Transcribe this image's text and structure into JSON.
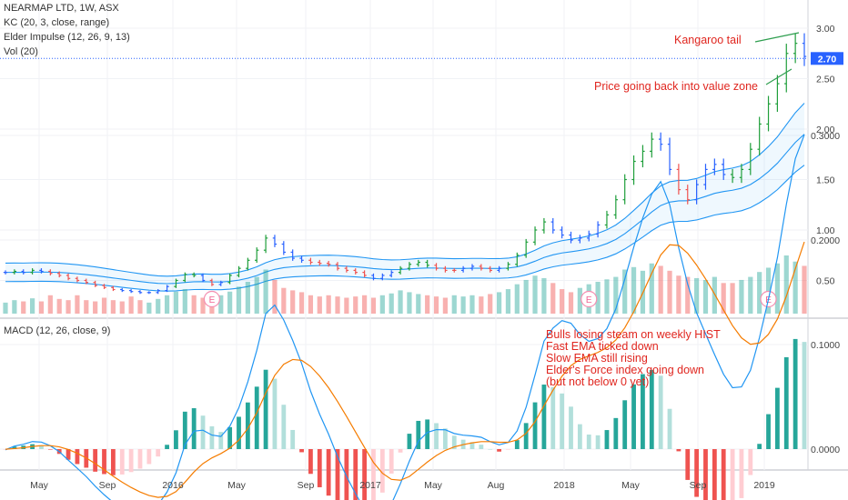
{
  "legend": {
    "symbol": "NEARMAP LTD, 1W, ASX",
    "kc": "KC (20, 3, close, range)",
    "impulse": "Elder Impulse (12, 26, 9, 13)",
    "vol": "Vol (20)",
    "macd": "MACD (12, 26, close, 9)"
  },
  "annotations": {
    "kangaroo": "Kangaroo tail",
    "value_zone": "Price going back into value zone",
    "bulls": [
      "Bulls losing steam on weekly HIST",
      "Fast EMA ticked down",
      "Slow EMA still rising",
      "Elder's Force index going down",
      "(but not below 0 yet)"
    ]
  },
  "last_price_label": "2.70",
  "earnings_marker": "E",
  "colors": {
    "up": "#26a69a",
    "down": "#ef5350",
    "neutral": "#2962ff",
    "channel": "#2196f3",
    "signal": "#f57c00",
    "annotation": "#e0261f"
  },
  "chart_data": [
    {
      "type": "line",
      "title": "NEARMAP LTD, 1W, ASX",
      "series": [
        {
          "name": "NEARMAP LTD",
          "values": [
            0.58,
            0.59,
            0.58,
            0.6,
            0.59,
            0.57,
            0.55,
            0.52,
            0.5,
            0.48,
            0.45,
            0.43,
            0.41,
            0.4,
            0.39,
            0.38,
            0.38,
            0.4,
            0.44,
            0.5,
            0.56,
            0.55,
            0.5,
            0.46,
            0.48,
            0.55,
            0.62,
            0.7,
            0.8,
            0.92,
            0.86,
            0.78,
            0.72,
            0.7,
            0.68,
            0.67,
            0.66,
            0.62,
            0.6,
            0.58,
            0.55,
            0.52,
            0.55,
            0.58,
            0.62,
            0.66,
            0.68,
            0.65,
            0.62,
            0.6,
            0.6,
            0.62,
            0.64,
            0.62,
            0.6,
            0.62,
            0.66,
            0.75,
            0.88,
            1.0,
            1.08,
            1.0,
            0.95,
            0.9,
            0.92,
            0.96,
            1.05,
            1.15,
            1.3,
            1.5,
            1.68,
            1.78,
            1.9,
            1.85,
            1.6,
            1.4,
            1.3,
            1.45,
            1.6,
            1.65,
            1.55,
            1.52,
            1.6,
            1.8,
            2.05,
            2.25,
            2.45,
            2.75,
            2.85,
            2.72
          ]
        }
      ],
      "x_ticks": [
        "May",
        "Sep",
        "2016",
        "May",
        "Sep",
        "2017",
        "May",
        "Aug",
        "2018",
        "May",
        "Sep",
        "2019"
      ],
      "y_ticks": [
        "0.50",
        "1.00",
        "1.50",
        "2.00",
        "2.50",
        "3.00"
      ],
      "ylim": [
        0.3,
        3.1
      ],
      "last_value": 2.7
    },
    {
      "type": "bar",
      "title": "Vol (20)",
      "values": [
        0.18,
        0.22,
        0.2,
        0.25,
        0.2,
        0.3,
        0.24,
        0.22,
        0.3,
        0.22,
        0.2,
        0.26,
        0.22,
        0.2,
        0.28,
        0.22,
        0.18,
        0.24,
        0.3,
        0.36,
        0.4,
        0.3,
        0.26,
        0.25,
        0.3,
        0.36,
        0.44,
        0.52,
        0.6,
        0.72,
        0.55,
        0.42,
        0.38,
        0.35,
        0.3,
        0.28,
        0.3,
        0.28,
        0.26,
        0.28,
        0.3,
        0.26,
        0.3,
        0.33,
        0.38,
        0.35,
        0.32,
        0.3,
        0.28,
        0.26,
        0.3,
        0.28,
        0.3,
        0.28,
        0.32,
        0.35,
        0.4,
        0.48,
        0.55,
        0.62,
        0.58,
        0.5,
        0.4,
        0.35,
        0.42,
        0.48,
        0.52,
        0.56,
        0.6,
        0.72,
        0.76,
        0.7,
        0.82,
        0.78,
        0.7,
        0.62,
        0.6,
        0.58,
        0.55,
        0.6,
        0.5,
        0.5,
        0.55,
        0.6,
        0.68,
        0.75,
        0.82,
        0.95,
        0.85,
        0.78
      ]
    },
    {
      "type": "line",
      "title": "MACD (12, 26, close, 9)",
      "series": [
        {
          "name": "MACD",
          "values": [
            -0.0007,
            0.0029,
            0.0046,
            0.0072,
            0.0067,
            0.0032,
            -0.0025,
            -0.0106,
            -0.0183,
            -0.0263,
            -0.0355,
            -0.0437,
            -0.051,
            -0.0559,
            -0.0587,
            -0.0597,
            -0.0587,
            -0.0533,
            -0.0411,
            -0.0227,
            0.0041,
            0.0172,
            0.0181,
            0.0134,
            0.0121,
            0.0219,
            0.0395,
            0.0643,
            0.0944,
            0.1296,
            0.1378,
            0.1235,
            0.104,
            0.0819,
            0.0553,
            0.0334,
            0.0142,
            -0.0073,
            -0.0262,
            -0.0426,
            -0.0577,
            -0.0704,
            -0.0647,
            -0.0524,
            -0.0331,
            -0.0115,
            0.0076,
            0.0159,
            0.0186,
            0.0185,
            0.0149,
            0.0133,
            0.0126,
            0.0113,
            0.0071,
            0.0041,
            0.0063,
            0.0173,
            0.0399,
            0.0709,
            0.1033,
            0.1157,
            0.1229,
            0.1204,
            0.1096,
            0.1031,
            0.1057,
            0.1152,
            0.1341,
            0.1627,
            0.1933,
            0.221,
            0.2439,
            0.2559,
            0.2339,
            0.1927,
            0.1579,
            0.1303,
            0.1102,
            0.0904,
            0.0716,
            0.0587,
            0.0595,
            0.0754,
            0.1065,
            0.1432,
            0.183,
            0.2342,
            0.2779,
            0.3007
          ]
        },
        {
          "name": "Signal",
          "values": [
            -0.0001,
            0.0005,
            0.0013,
            0.0025,
            0.0033,
            0.0033,
            0.0021,
            -0.0004,
            -0.004,
            -0.0085,
            -0.0139,
            -0.0198,
            -0.026,
            -0.0316,
            -0.0367,
            -0.041,
            -0.0444,
            -0.0462,
            -0.0452,
            -0.0407,
            -0.0317,
            -0.0219,
            -0.0139,
            -0.0084,
            -0.0043,
            0.0009,
            0.0086,
            0.0197,
            0.0347,
            0.0537,
            0.0705,
            0.0811,
            0.0857,
            0.0849,
            0.079,
            0.0699,
            0.0587,
            0.0455,
            0.0312,
            0.0164,
            0.0016,
            -0.0128,
            -0.0231,
            -0.029,
            -0.0298,
            -0.0262,
            -0.0194,
            -0.0124,
            -0.0062,
            -0.0012,
            0.0021,
            0.0043,
            0.006,
            0.0071,
            0.0071,
            0.0065,
            0.0065,
            0.0087,
            0.015,
            0.0262,
            0.0416,
            0.0564,
            0.0697,
            0.0798,
            0.0858,
            0.0892,
            0.0925,
            0.097,
            0.1044,
            0.116,
            0.1314,
            0.1493,
            0.1682,
            0.1857,
            0.1954,
            0.1948,
            0.1874,
            0.176,
            0.1628,
            0.1483,
            0.133,
            0.1181,
            0.1064,
            0.1002,
            0.1015,
            0.1098,
            0.1244,
            0.1463,
            0.1726,
            0.1982
          ]
        }
      ],
      "x_ticks": [
        "May",
        "Sep",
        "2016",
        "May",
        "Sep",
        "2017",
        "May",
        "Aug",
        "2018",
        "May",
        "Sep",
        "2019"
      ],
      "y_ticks": [
        "0.0000",
        "0.1000",
        "0.2000",
        "0.3000"
      ],
      "ylim": [
        -0.07,
        0.36
      ]
    }
  ]
}
